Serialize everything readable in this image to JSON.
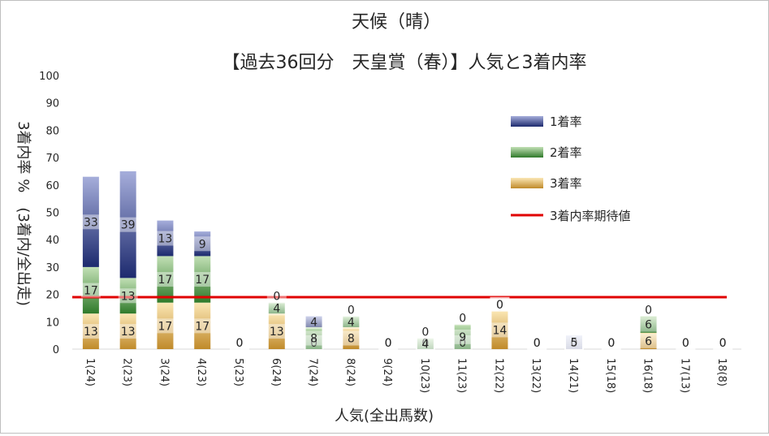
{
  "chart_data": {
    "type": "bar",
    "title": "天候（晴）",
    "subtitle": "【過去36回分　天皇賞（春）】人気と3着内率",
    "xlabel": "人気(全出馬数)",
    "ylabel": "3着内率 %　(3着内/全出走)",
    "ylim": [
      0,
      100
    ],
    "yticks": [
      "0",
      "10",
      "20",
      "30",
      "40",
      "50",
      "60",
      "70",
      "80",
      "90",
      "100"
    ],
    "categories": [
      "1(24)",
      "2(23)",
      "3(24)",
      "4(23)",
      "5(23)",
      "6(24)",
      "7(24)",
      "8(24)",
      "9(24)",
      "10(23)",
      "11(23)",
      "12(22)",
      "13(22)",
      "14(21)",
      "15(18)",
      "16(18)",
      "17(13)",
      "18(8)"
    ],
    "series": [
      {
        "name": "3着率",
        "values": [
          13,
          13,
          17,
          17,
          0,
          13,
          0,
          8,
          0,
          0,
          0,
          14,
          0,
          0,
          0,
          6,
          0,
          0
        ],
        "labels": [
          "13",
          "13",
          "17",
          "17",
          "0",
          "13",
          "0",
          "8",
          "0",
          "0",
          "0",
          "14",
          "0",
          "0",
          "0",
          "6",
          "0",
          "0"
        ]
      },
      {
        "name": "2着率",
        "values": [
          17,
          13,
          17,
          17,
          0,
          4,
          8,
          4,
          0,
          4,
          9,
          0,
          0,
          0,
          0,
          6,
          0,
          0
        ],
        "labels": [
          "17",
          "13",
          "17",
          "17",
          "0",
          "4",
          "8",
          "4",
          "0",
          "4",
          "9",
          "0",
          "0",
          "0",
          "0",
          "6",
          "0",
          "0"
        ]
      },
      {
        "name": "1着率",
        "values": [
          33,
          39,
          13,
          9,
          0,
          0,
          4,
          0,
          0,
          0,
          0,
          0,
          0,
          5,
          0,
          0,
          0,
          0
        ],
        "labels": [
          "33",
          "39",
          "13",
          "9",
          "0",
          "0",
          "4",
          "0",
          "0",
          "0",
          "0",
          "0",
          "0",
          "5",
          "0",
          "0",
          "0",
          "0"
        ]
      }
    ],
    "reference_line": {
      "name": "3着内率期待値",
      "value": 19
    },
    "legend_position": "right",
    "colors": {
      "rank1": "#2e3a8c",
      "rank2": "#4e9a3e",
      "rank3": "#d9a441",
      "expected": "#e00000"
    }
  }
}
